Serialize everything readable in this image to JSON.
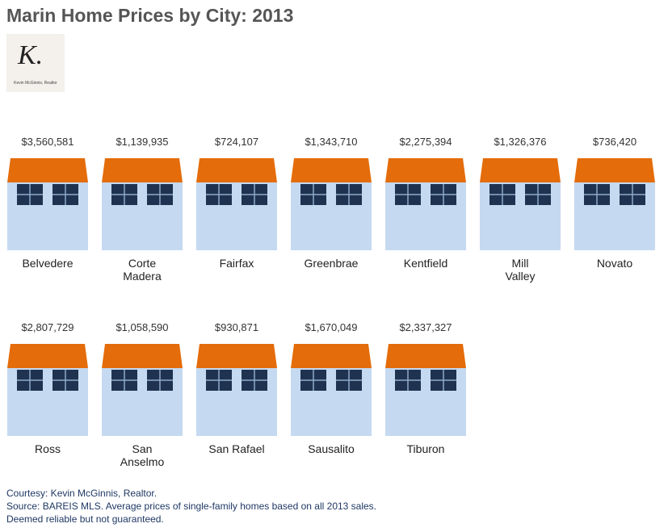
{
  "header": {
    "title": "Marin Home Prices by City: 2013",
    "logo_initial": "K.",
    "logo_caption": "Kevin McGinnis, Realtor"
  },
  "cities": [
    {
      "name": "Belvedere",
      "price": "$3,560,581"
    },
    {
      "name": "Corte\nMadera",
      "price": "$1,139,935"
    },
    {
      "name": "Fairfax",
      "price": "$724,107"
    },
    {
      "name": "Greenbrae",
      "price": "$1,343,710"
    },
    {
      "name": "Kentfield",
      "price": "$2,275,394"
    },
    {
      "name": "Mill\nValley",
      "price": "$1,326,376"
    },
    {
      "name": "Novato",
      "price": "$736,420"
    },
    {
      "name": "Ross",
      "price": "$2,807,729"
    },
    {
      "name": "San\nAnselmo",
      "price": "$1,058,590"
    },
    {
      "name": "San Rafael",
      "price": "$930,871"
    },
    {
      "name": "Sausalito",
      "price": "$1,670,049"
    },
    {
      "name": "Tiburon",
      "price": "$2,337,327"
    }
  ],
  "footer": [
    "Courtesy: Kevin McGinnis, Realtor.",
    "Source: BAREIS MLS. Average prices of single-family homes based on all 2013 sales.",
    "Deemed reliable but not guaranteed."
  ]
}
